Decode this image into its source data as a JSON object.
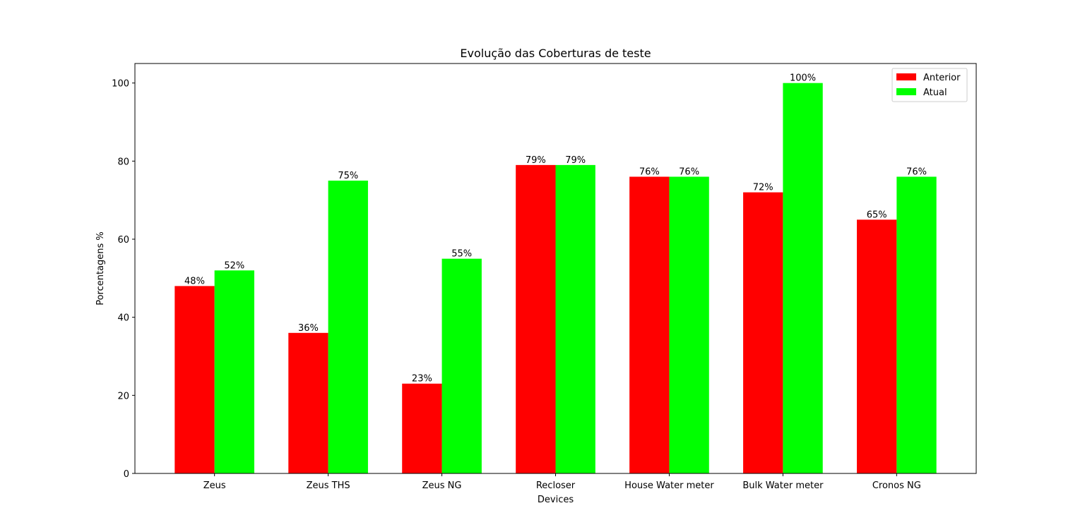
{
  "chart_data": {
    "type": "bar",
    "title": "Evolução das Coberturas de teste",
    "xlabel": "Devices",
    "ylabel": "Porcentagens %",
    "categories": [
      "Zeus",
      "Zeus THS",
      "Zeus NG",
      "Recloser",
      "House Water meter",
      "Bulk Water meter",
      "Cronos NG"
    ],
    "series": [
      {
        "name": "Anterior",
        "color": "#ff0000",
        "values": [
          48,
          36,
          23,
          79,
          76,
          72,
          65
        ],
        "labels": [
          "48%",
          "36%",
          "23%",
          "79%",
          "76%",
          "72%",
          "65%"
        ]
      },
      {
        "name": "Atual",
        "color": "#00ff00",
        "values": [
          52,
          75,
          55,
          79,
          76,
          100,
          76
        ],
        "labels": [
          "52%",
          "75%",
          "55%",
          "79%",
          "76%",
          "100%",
          "76%"
        ]
      }
    ],
    "ylim": [
      0,
      105
    ],
    "yticks": [
      0,
      20,
      40,
      60,
      80,
      100
    ],
    "ytick_labels": [
      "0",
      "20",
      "40",
      "60",
      "80",
      "100"
    ],
    "grid": false,
    "legend_position": "top-right"
  }
}
